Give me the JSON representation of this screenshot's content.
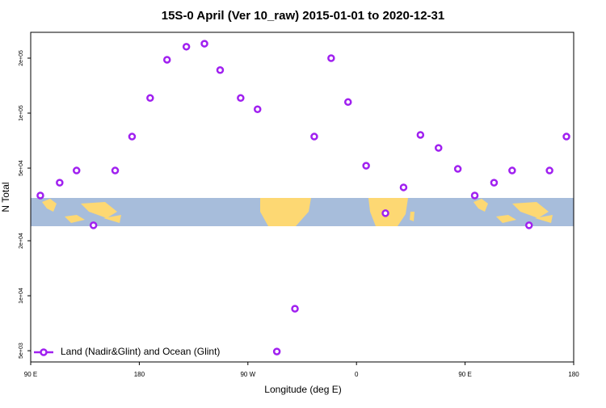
{
  "chart_data": {
    "type": "scatter",
    "title": "15S-0 April (Ver 10_raw)   2015-01-01 to 2020-12-31",
    "x_label": "Longitude (deg E)",
    "y_label": "N Total",
    "log_y": true,
    "xlim": [
      90,
      540
    ],
    "ylim": [
      4340,
      277000
    ],
    "xticks": [
      {
        "value": 90,
        "label": "90 E"
      },
      {
        "value": 180,
        "label": "180"
      },
      {
        "value": 270,
        "label": "90 W"
      },
      {
        "value": 360,
        "label": "0"
      },
      {
        "value": 450,
        "label": "90 E"
      },
      {
        "value": 540,
        "label": "180"
      }
    ],
    "yticks": [
      {
        "value": 5000,
        "label": "5e+03"
      },
      {
        "value": 10000,
        "label": "1e+04"
      },
      {
        "value": 20000,
        "label": "2e+04"
      },
      {
        "value": 50000,
        "label": "5e+04"
      },
      {
        "value": 100000,
        "label": "1e+05"
      },
      {
        "value": 200000,
        "label": "2e+05"
      }
    ],
    "legend": "bottom-left",
    "series": [
      {
        "name": "Land (Nadir&Glint) and Ocean (Glint)",
        "color": "#a020f0",
        "x": [
          98,
          114,
          128,
          142,
          160,
          174,
          189,
          203,
          219,
          234,
          247,
          264,
          278,
          294,
          309,
          325,
          339,
          353,
          368,
          384,
          399,
          413,
          428,
          444,
          458,
          474,
          489,
          503,
          520,
          534
        ],
        "values": [
          35400,
          41600,
          48500,
          24300,
          48500,
          74400,
          121000,
          196000,
          231000,
          240000,
          172000,
          121000,
          105000,
          4950,
          8490,
          74400,
          200000,
          115000,
          51500,
          28300,
          39200,
          76000,
          64500,
          49500,
          35400,
          41600,
          48500,
          24300,
          48500,
          74400
        ]
      }
    ]
  }
}
